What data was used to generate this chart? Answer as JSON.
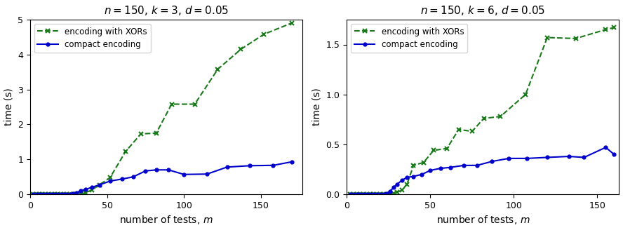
{
  "left": {
    "title": "$n = 150,\\, k = 3,\\, d = 0.05$",
    "xor_x": [
      2,
      4,
      6,
      8,
      10,
      12,
      14,
      16,
      18,
      20,
      22,
      24,
      26,
      28,
      30,
      33,
      36,
      40,
      45,
      52,
      62,
      72,
      82,
      92,
      107,
      122,
      137,
      152,
      170
    ],
    "xor_y": [
      0.0,
      0.0,
      0.0,
      0.0,
      0.0,
      0.0,
      0.0,
      0.0,
      0.0,
      0.0,
      0.0,
      0.0,
      0.0,
      0.0,
      0.0,
      0.0,
      0.05,
      0.12,
      0.27,
      0.48,
      1.22,
      1.73,
      1.75,
      2.58,
      2.58,
      3.58,
      4.15,
      4.58,
      4.9
    ],
    "compact_x": [
      2,
      4,
      6,
      8,
      10,
      12,
      14,
      16,
      18,
      20,
      22,
      24,
      26,
      28,
      30,
      33,
      36,
      40,
      45,
      52,
      60,
      67,
      75,
      82,
      90,
      100,
      115,
      128,
      143,
      158,
      170
    ],
    "compact_y": [
      0.0,
      0.0,
      0.0,
      0.0,
      0.0,
      0.0,
      0.0,
      0.0,
      0.0,
      0.0,
      0.0,
      0.0,
      0.01,
      0.02,
      0.05,
      0.1,
      0.14,
      0.2,
      0.27,
      0.38,
      0.44,
      0.5,
      0.67,
      0.7,
      0.7,
      0.57,
      0.58,
      0.78,
      0.82,
      0.83,
      0.93
    ],
    "ylim": [
      0,
      5
    ],
    "yticks": [
      0,
      1,
      2,
      3,
      4,
      5
    ],
    "xlim": [
      0,
      177
    ],
    "xticks": [
      0,
      50,
      100,
      150
    ]
  },
  "right": {
    "title": "$n = 150,\\, k = 6,\\, d = 0.05$",
    "xor_x": [
      2,
      4,
      6,
      8,
      10,
      12,
      14,
      16,
      18,
      20,
      22,
      24,
      26,
      28,
      30,
      33,
      36,
      40,
      46,
      52,
      60,
      67,
      75,
      82,
      92,
      107,
      120,
      137,
      155,
      160
    ],
    "xor_y": [
      0.0,
      0.0,
      0.0,
      0.0,
      0.0,
      0.0,
      0.0,
      0.0,
      0.0,
      0.0,
      0.0,
      0.0,
      0.0,
      0.01,
      0.02,
      0.04,
      0.1,
      0.29,
      0.32,
      0.44,
      0.46,
      0.65,
      0.63,
      0.76,
      0.78,
      1.0,
      1.57,
      1.56,
      1.65,
      1.67
    ],
    "compact_x": [
      2,
      4,
      6,
      8,
      10,
      12,
      14,
      16,
      18,
      20,
      22,
      24,
      26,
      28,
      30,
      33,
      36,
      40,
      45,
      50,
      56,
      62,
      70,
      78,
      87,
      97,
      108,
      120,
      133,
      142,
      155,
      160
    ],
    "compact_y": [
      0.0,
      0.0,
      0.0,
      0.0,
      0.0,
      0.0,
      0.0,
      0.0,
      0.0,
      0.0,
      0.0,
      0.01,
      0.03,
      0.07,
      0.1,
      0.14,
      0.17,
      0.18,
      0.2,
      0.24,
      0.26,
      0.27,
      0.29,
      0.29,
      0.33,
      0.36,
      0.36,
      0.37,
      0.38,
      0.37,
      0.47,
      0.4
    ],
    "ylim": [
      0,
      1.75
    ],
    "yticks": [
      0.0,
      0.5,
      1.0,
      1.5
    ],
    "xlim": [
      0,
      163
    ],
    "xticks": [
      0,
      50,
      100,
      150
    ]
  },
  "xor_color": "#1a7a1a",
  "compact_color": "#0000cc",
  "xlabel": "number of tests, $m$",
  "ylabel": "time (s)",
  "xor_label": "encoding with XORs",
  "compact_label": "compact encoding",
  "figsize": [
    8.88,
    3.28
  ],
  "dpi": 100
}
